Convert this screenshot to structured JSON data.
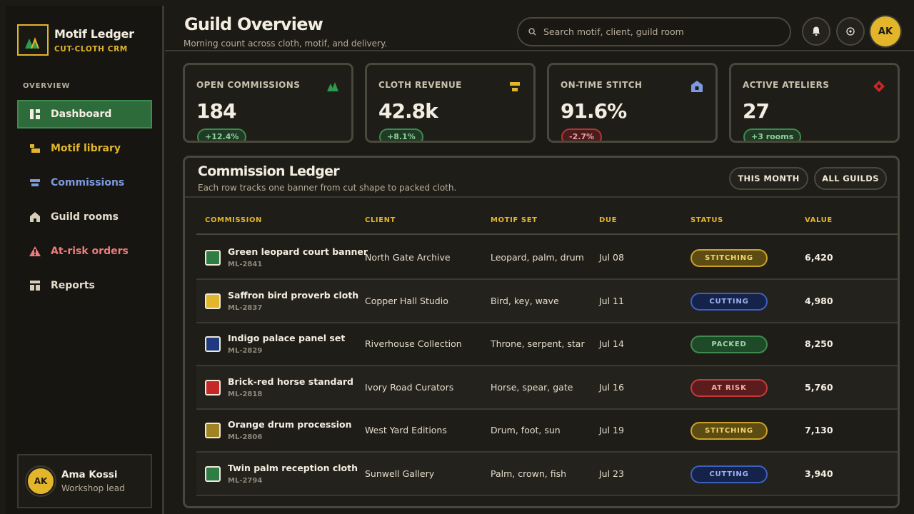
{
  "brand": {
    "name": "Motif Ledger",
    "subtitle": "CUT-CLOTH CRM"
  },
  "nav": {
    "heading": "OVERVIEW",
    "items": [
      {
        "label": "Dashboard",
        "icon": "dashboard-icon",
        "color": "#f4eee2",
        "active": true
      },
      {
        "label": "Motif library",
        "icon": "motif-icon",
        "color": "#e2b52b"
      },
      {
        "label": "Commissions",
        "icon": "commissions-icon",
        "color": "#7d9ae0"
      },
      {
        "label": "Guild rooms",
        "icon": "house-icon",
        "color": "#e4dccb"
      },
      {
        "label": "At-risk orders",
        "icon": "warning-icon",
        "color": "#ef7b7b"
      },
      {
        "label": "Reports",
        "icon": "reports-icon",
        "color": "#e4dccb"
      }
    ]
  },
  "user": {
    "initials": "AK",
    "name": "Ama Kossi",
    "role": "Workshop lead"
  },
  "header": {
    "title": "Guild Overview",
    "subtitle": "Morning count across cloth, motif, and delivery.",
    "search_placeholder": "Search motif, client, guild room",
    "avatar_initials": "AK"
  },
  "stats": [
    {
      "label": "OPEN COMMISSIONS",
      "value": "184",
      "delta": "+12.4%",
      "trend": "up",
      "icon": "mountains-icon"
    },
    {
      "label": "CLOTH REVENUE",
      "value": "42.8k",
      "delta": "+8.1%",
      "trend": "up",
      "icon": "cloth-bolt-icon"
    },
    {
      "label": "ON-TIME STITCH",
      "value": "91.6%",
      "delta": "-2.7%",
      "trend": "down",
      "icon": "house-icon"
    },
    {
      "label": "ACTIVE ATELIERS",
      "value": "27",
      "delta": "+3 rooms",
      "trend": "up",
      "icon": "diamond-icon"
    }
  ],
  "ledger": {
    "title": "Commission Ledger",
    "subtitle": "Each row tracks one banner from cut shape to packed cloth.",
    "filters": [
      "THIS MONTH",
      "ALL GUILDS"
    ],
    "columns": [
      "COMMISSION",
      "CLIENT",
      "MOTIF SET",
      "DUE",
      "STATUS",
      "VALUE"
    ],
    "rows": [
      {
        "title": "Green leopard court banner",
        "code": "ML-2841",
        "client": "North Gate Archive",
        "motifs": "Leopard, palm, drum",
        "due": "Jul 08",
        "status": "STITCHING",
        "value": "6,420",
        "swatch": "#2e7d45"
      },
      {
        "title": "Saffron bird proverb cloth",
        "code": "ML-2837",
        "client": "Copper Hall Studio",
        "motifs": "Bird, key, wave",
        "due": "Jul 11",
        "status": "CUTTING",
        "value": "4,980",
        "swatch": "#e2b52b"
      },
      {
        "title": "Indigo palace panel set",
        "code": "ML-2829",
        "client": "Riverhouse Collection",
        "motifs": "Throne, serpent, star",
        "due": "Jul 14",
        "status": "PACKED",
        "value": "8,250",
        "swatch": "#1f3a80"
      },
      {
        "title": "Brick-red horse standard",
        "code": "ML-2818",
        "client": "Ivory Road Curators",
        "motifs": "Horse, spear, gate",
        "due": "Jul 16",
        "status": "AT RISK",
        "value": "5,760",
        "swatch": "#c62828"
      },
      {
        "title": "Orange drum procession",
        "code": "ML-2806",
        "client": "West Yard Editions",
        "motifs": "Drum, foot, sun",
        "due": "Jul 19",
        "status": "STITCHING",
        "value": "7,130",
        "swatch": "#a08424"
      },
      {
        "title": "Twin palm reception cloth",
        "code": "ML-2794",
        "client": "Sunwell Gallery",
        "motifs": "Palm, crown, fish",
        "due": "Jul 23",
        "status": "CUTTING",
        "value": "3,940",
        "swatch": "#2e7d45"
      }
    ]
  }
}
